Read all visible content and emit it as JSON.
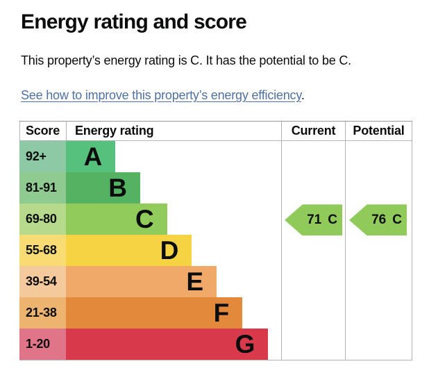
{
  "page": {
    "title": "Energy rating and score",
    "summary": "This property’s energy rating is C. It has the potential to be C.",
    "link": {
      "text": "See how to improve this property’s energy efficiency",
      "suffix": "."
    }
  },
  "table": {
    "headers": {
      "score": "Score",
      "rating": "Energy rating",
      "current": "Current",
      "potential": "Potential"
    },
    "bands": [
      {
        "score": "92+",
        "letter": "A",
        "bar_color": "#56c17d",
        "score_color": "#8cc9a4",
        "bar_width_pct": 23
      },
      {
        "score": "81-91",
        "letter": "B",
        "bar_color": "#54b363",
        "score_color": "#8fcb90",
        "bar_width_pct": 34.5
      },
      {
        "score": "69-80",
        "letter": "C",
        "bar_color": "#90cb5b",
        "score_color": "#b7d98c",
        "bar_width_pct": 47
      },
      {
        "score": "55-68",
        "letter": "D",
        "bar_color": "#f6d343",
        "score_color": "#f8dc73",
        "bar_width_pct": 58.5
      },
      {
        "score": "39-54",
        "letter": "E",
        "bar_color": "#f1a96a",
        "score_color": "#f4c99c",
        "bar_width_pct": 70
      },
      {
        "score": "21-38",
        "letter": "F",
        "bar_color": "#e2893c",
        "score_color": "#ecb46e",
        "bar_width_pct": 82
      },
      {
        "score": "1-20",
        "letter": "G",
        "bar_color": "#d8394b",
        "score_color": "#e0758a",
        "bar_width_pct": 94
      }
    ],
    "indicators": {
      "current": {
        "value": "71",
        "band": "C",
        "color": "#8fca5a"
      },
      "potential": {
        "value": "76",
        "band": "C",
        "color": "#8fca5a"
      }
    }
  },
  "colors": {
    "text": "#0b0c0c",
    "link": "#4e71a5",
    "border": "#b1b4b6",
    "border_top": "#8f9699"
  },
  "chart_data": {
    "type": "bar",
    "title": "Energy rating and score",
    "categories": [
      "A",
      "B",
      "C",
      "D",
      "E",
      "F",
      "G"
    ],
    "score_ranges": [
      "92+",
      "81-91",
      "69-80",
      "55-68",
      "39-54",
      "21-38",
      "1-20"
    ],
    "relative_bar_widths_pct": [
      23,
      34.5,
      47,
      58.5,
      70,
      82,
      94
    ],
    "band_colors": [
      "#56c17d",
      "#54b363",
      "#90cb5b",
      "#f6d343",
      "#f1a96a",
      "#e2893c",
      "#d8394b"
    ],
    "columns": [
      "Score",
      "Energy rating",
      "Current",
      "Potential"
    ],
    "current": {
      "score": 71,
      "band": "C"
    },
    "potential": {
      "score": 76,
      "band": "C"
    },
    "legend_position": "none",
    "grid": false
  }
}
